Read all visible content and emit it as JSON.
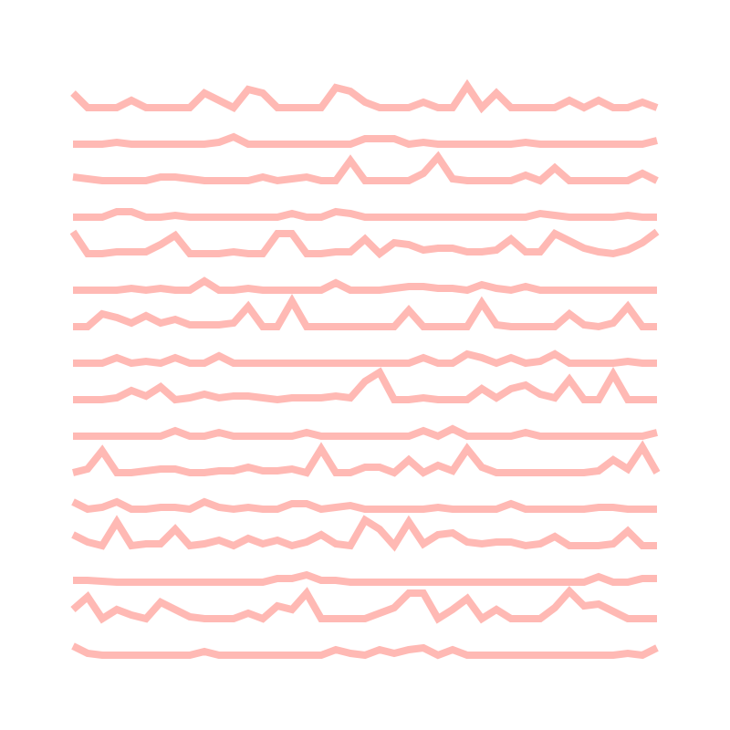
{
  "color": "#ffb9b4",
  "lines": [
    {
      "values": [
        16,
        0,
        0,
        0,
        8,
        0,
        0,
        0,
        0,
        16,
        8,
        0,
        20,
        16,
        0,
        0,
        0,
        0,
        22,
        18,
        6,
        0,
        0,
        0,
        6,
        0,
        0,
        24,
        0,
        16,
        0,
        0,
        0,
        0,
        8,
        0,
        8,
        0,
        0,
        6,
        0
      ]
    },
    {
      "values": [
        0,
        0,
        0,
        2,
        0,
        0,
        0,
        0,
        0,
        0,
        2,
        8,
        0,
        0,
        0,
        0,
        0,
        0,
        0,
        0,
        6,
        6,
        6,
        0,
        2,
        0,
        0,
        0,
        0,
        0,
        0,
        2,
        0,
        0,
        0,
        0,
        0,
        0,
        0,
        0,
        4
      ]
    },
    {
      "values": [
        4,
        2,
        0,
        0,
        0,
        0,
        4,
        4,
        2,
        0,
        0,
        0,
        0,
        4,
        0,
        2,
        4,
        0,
        0,
        22,
        0,
        0,
        0,
        0,
        8,
        26,
        2,
        0,
        0,
        0,
        0,
        6,
        0,
        14,
        0,
        0,
        0,
        0,
        0,
        8,
        0
      ]
    },
    {
      "values": [
        0,
        0,
        0,
        6,
        6,
        0,
        0,
        2,
        0,
        0,
        0,
        0,
        0,
        0,
        0,
        4,
        0,
        0,
        6,
        4,
        0,
        0,
        0,
        0,
        0,
        0,
        0,
        0,
        0,
        0,
        0,
        0,
        4,
        2,
        0,
        0,
        0,
        0,
        2,
        0,
        0
      ]
    },
    {
      "values": [
        24,
        0,
        0,
        2,
        2,
        2,
        10,
        20,
        0,
        0,
        0,
        2,
        0,
        0,
        22,
        22,
        0,
        0,
        2,
        2,
        16,
        0,
        12,
        10,
        4,
        6,
        6,
        2,
        2,
        4,
        16,
        2,
        2,
        22,
        14,
        6,
        2,
        0,
        4,
        12,
        24
      ]
    },
    {
      "values": [
        0,
        0,
        0,
        0,
        2,
        0,
        2,
        0,
        0,
        10,
        0,
        0,
        2,
        0,
        0,
        0,
        0,
        0,
        8,
        0,
        0,
        0,
        2,
        4,
        4,
        2,
        2,
        0,
        6,
        2,
        0,
        4,
        0,
        0,
        0,
        0,
        0,
        0,
        0,
        0,
        0
      ]
    },
    {
      "values": [
        0,
        0,
        14,
        10,
        4,
        12,
        4,
        8,
        2,
        2,
        2,
        4,
        22,
        0,
        0,
        28,
        0,
        0,
        0,
        0,
        0,
        0,
        0,
        18,
        0,
        0,
        0,
        0,
        26,
        2,
        0,
        0,
        0,
        0,
        14,
        2,
        0,
        4,
        22,
        0,
        0
      ]
    },
    {
      "values": [
        0,
        0,
        0,
        6,
        0,
        2,
        0,
        6,
        0,
        0,
        8,
        0,
        0,
        0,
        0,
        0,
        0,
        0,
        0,
        0,
        0,
        0,
        0,
        0,
        6,
        0,
        0,
        10,
        6,
        0,
        6,
        0,
        2,
        10,
        0,
        0,
        0,
        0,
        2,
        0,
        0
      ]
    },
    {
      "values": [
        0,
        0,
        0,
        2,
        10,
        4,
        14,
        0,
        2,
        6,
        2,
        4,
        4,
        2,
        0,
        2,
        2,
        2,
        4,
        2,
        20,
        30,
        0,
        0,
        2,
        0,
        0,
        0,
        12,
        2,
        12,
        16,
        6,
        2,
        22,
        0,
        0,
        28,
        0,
        0,
        0
      ]
    },
    {
      "values": [
        0,
        0,
        0,
        0,
        0,
        0,
        0,
        6,
        0,
        0,
        4,
        0,
        0,
        0,
        0,
        0,
        4,
        0,
        0,
        0,
        0,
        0,
        0,
        0,
        6,
        0,
        8,
        0,
        0,
        0,
        0,
        4,
        0,
        0,
        0,
        0,
        0,
        0,
        0,
        0,
        4
      ]
    },
    {
      "values": [
        0,
        4,
        24,
        0,
        0,
        2,
        4,
        4,
        0,
        0,
        2,
        2,
        6,
        2,
        2,
        4,
        0,
        26,
        0,
        0,
        6,
        6,
        0,
        14,
        0,
        8,
        2,
        26,
        6,
        0,
        0,
        0,
        0,
        0,
        0,
        0,
        2,
        14,
        4,
        28,
        0
      ]
    },
    {
      "values": [
        8,
        0,
        2,
        8,
        0,
        0,
        2,
        2,
        0,
        8,
        2,
        0,
        2,
        0,
        0,
        6,
        6,
        0,
        2,
        4,
        0,
        0,
        0,
        0,
        0,
        2,
        0,
        0,
        0,
        0,
        6,
        0,
        0,
        0,
        0,
        0,
        2,
        2,
        0,
        0,
        0
      ]
    },
    {
      "values": [
        12,
        4,
        0,
        26,
        0,
        2,
        2,
        18,
        0,
        2,
        6,
        0,
        8,
        2,
        6,
        0,
        4,
        12,
        2,
        0,
        28,
        18,
        0,
        26,
        2,
        12,
        14,
        4,
        2,
        4,
        4,
        0,
        2,
        10,
        0,
        0,
        0,
        2,
        16,
        0,
        0
      ]
    },
    {
      "values": [
        2,
        2,
        1,
        0,
        0,
        0,
        0,
        0,
        0,
        0,
        0,
        0,
        0,
        0,
        4,
        4,
        8,
        2,
        2,
        0,
        0,
        0,
        0,
        0,
        0,
        0,
        0,
        0,
        0,
        0,
        0,
        0,
        0,
        0,
        0,
        0,
        6,
        0,
        0,
        4,
        4
      ]
    },
    {
      "values": [
        10,
        24,
        0,
        10,
        4,
        0,
        18,
        10,
        2,
        0,
        0,
        0,
        6,
        0,
        14,
        10,
        28,
        0,
        0,
        0,
        0,
        6,
        12,
        28,
        28,
        0,
        10,
        22,
        0,
        10,
        0,
        0,
        0,
        12,
        30,
        14,
        16,
        8,
        0,
        0,
        0
      ]
    },
    {
      "values": [
        10,
        2,
        0,
        0,
        0,
        0,
        0,
        0,
        0,
        4,
        0,
        0,
        0,
        0,
        0,
        0,
        0,
        0,
        6,
        2,
        0,
        6,
        2,
        6,
        8,
        0,
        6,
        0,
        0,
        0,
        0,
        0,
        0,
        0,
        0,
        0,
        0,
        0,
        2,
        0,
        8
      ]
    }
  ]
}
